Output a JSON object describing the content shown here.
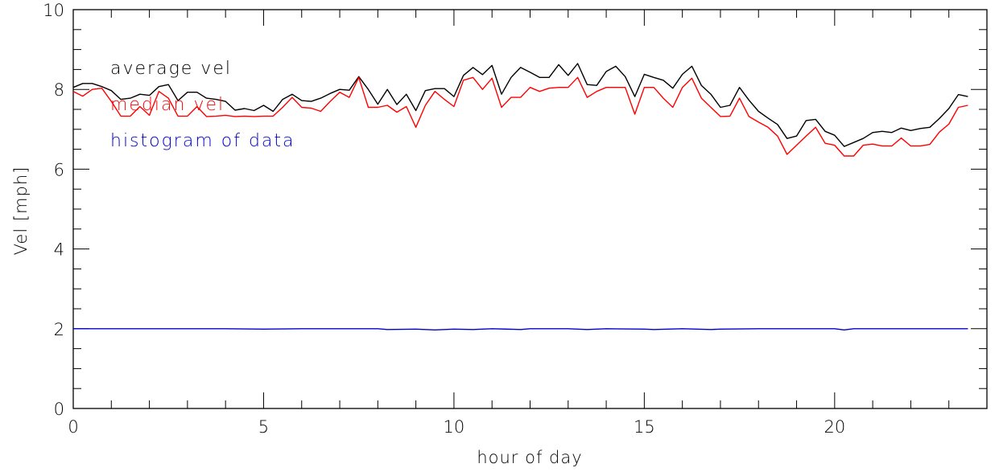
{
  "chart_data": {
    "type": "line",
    "xlabel": "hour of day",
    "ylabel": "Vel [mph]",
    "xlim": [
      0,
      24
    ],
    "ylim": [
      0,
      10
    ],
    "xticks": [
      0,
      5,
      10,
      15,
      20
    ],
    "yticks": [
      0,
      2,
      4,
      6,
      8,
      10
    ],
    "legend_placement": "top-left, inside plot",
    "series": [
      {
        "name": "average vel",
        "color": "#000000",
        "points": [
          [
            0,
            8.05
          ],
          [
            0.25,
            8.15
          ],
          [
            0.5,
            8.15
          ],
          [
            0.75,
            8.07
          ],
          [
            1,
            7.97
          ],
          [
            1.25,
            7.75
          ],
          [
            1.5,
            7.78
          ],
          [
            1.75,
            7.88
          ],
          [
            2,
            7.85
          ],
          [
            2.25,
            8.07
          ],
          [
            2.5,
            8.12
          ],
          [
            2.75,
            7.72
          ],
          [
            3,
            7.93
          ],
          [
            3.25,
            7.93
          ],
          [
            3.5,
            7.78
          ],
          [
            3.75,
            7.75
          ],
          [
            4,
            7.7
          ],
          [
            4.25,
            7.48
          ],
          [
            4.5,
            7.52
          ],
          [
            4.75,
            7.47
          ],
          [
            5,
            7.6
          ],
          [
            5.25,
            7.45
          ],
          [
            5.5,
            7.75
          ],
          [
            5.75,
            7.88
          ],
          [
            6,
            7.72
          ],
          [
            6.25,
            7.7
          ],
          [
            6.5,
            7.78
          ],
          [
            6.75,
            7.9
          ],
          [
            7,
            8.0
          ],
          [
            7.25,
            7.98
          ],
          [
            7.5,
            8.32
          ],
          [
            7.75,
            8.0
          ],
          [
            8,
            7.63
          ],
          [
            8.25,
            8.0
          ],
          [
            8.5,
            7.62
          ],
          [
            8.75,
            7.88
          ],
          [
            9,
            7.47
          ],
          [
            9.25,
            7.97
          ],
          [
            9.5,
            8.02
          ],
          [
            9.75,
            8.02
          ],
          [
            10,
            7.82
          ],
          [
            10.25,
            8.35
          ],
          [
            10.5,
            8.55
          ],
          [
            10.75,
            8.37
          ],
          [
            11,
            8.6
          ],
          [
            11.25,
            7.88
          ],
          [
            11.5,
            8.3
          ],
          [
            11.75,
            8.55
          ],
          [
            12,
            8.43
          ],
          [
            12.25,
            8.3
          ],
          [
            12.5,
            8.3
          ],
          [
            12.75,
            8.62
          ],
          [
            13,
            8.35
          ],
          [
            13.25,
            8.65
          ],
          [
            13.5,
            8.12
          ],
          [
            13.75,
            8.1
          ],
          [
            14,
            8.45
          ],
          [
            14.25,
            8.58
          ],
          [
            14.5,
            8.32
          ],
          [
            14.75,
            7.82
          ],
          [
            15,
            8.38
          ],
          [
            15.25,
            8.3
          ],
          [
            15.5,
            8.23
          ],
          [
            15.75,
            8.03
          ],
          [
            16,
            8.38
          ],
          [
            16.25,
            8.58
          ],
          [
            16.5,
            8.1
          ],
          [
            16.75,
            7.88
          ],
          [
            17,
            7.55
          ],
          [
            17.25,
            7.6
          ],
          [
            17.5,
            8.05
          ],
          [
            17.75,
            7.73
          ],
          [
            18,
            7.45
          ],
          [
            18.25,
            7.28
          ],
          [
            18.5,
            7.12
          ],
          [
            18.75,
            6.77
          ],
          [
            19,
            6.83
          ],
          [
            19.25,
            7.22
          ],
          [
            19.5,
            7.25
          ],
          [
            19.75,
            6.95
          ],
          [
            20,
            6.85
          ],
          [
            20.25,
            6.57
          ],
          [
            20.5,
            6.67
          ],
          [
            20.75,
            6.77
          ],
          [
            21,
            6.92
          ],
          [
            21.25,
            6.95
          ],
          [
            21.5,
            6.92
          ],
          [
            21.75,
            7.03
          ],
          [
            22,
            6.97
          ],
          [
            22.25,
            7.02
          ],
          [
            22.5,
            7.05
          ],
          [
            22.75,
            7.27
          ],
          [
            23,
            7.52
          ],
          [
            23.25,
            7.87
          ],
          [
            23.5,
            7.82
          ]
        ]
      },
      {
        "name": "median vel",
        "color": "#ff0000",
        "points": [
          [
            0,
            7.95
          ],
          [
            0.25,
            7.83
          ],
          [
            0.5,
            8.0
          ],
          [
            0.75,
            8.03
          ],
          [
            1,
            7.7
          ],
          [
            1.25,
            7.33
          ],
          [
            1.5,
            7.33
          ],
          [
            1.75,
            7.57
          ],
          [
            2,
            7.35
          ],
          [
            2.25,
            7.95
          ],
          [
            2.5,
            7.78
          ],
          [
            2.75,
            7.33
          ],
          [
            3,
            7.33
          ],
          [
            3.25,
            7.57
          ],
          [
            3.5,
            7.32
          ],
          [
            3.75,
            7.33
          ],
          [
            4,
            7.35
          ],
          [
            4.25,
            7.32
          ],
          [
            4.5,
            7.33
          ],
          [
            4.75,
            7.32
          ],
          [
            5,
            7.33
          ],
          [
            5.25,
            7.33
          ],
          [
            5.5,
            7.55
          ],
          [
            5.75,
            7.8
          ],
          [
            6,
            7.55
          ],
          [
            6.25,
            7.53
          ],
          [
            6.5,
            7.45
          ],
          [
            6.75,
            7.7
          ],
          [
            7,
            7.93
          ],
          [
            7.25,
            7.8
          ],
          [
            7.5,
            8.3
          ],
          [
            7.75,
            7.55
          ],
          [
            8,
            7.55
          ],
          [
            8.25,
            7.6
          ],
          [
            8.5,
            7.43
          ],
          [
            8.75,
            7.57
          ],
          [
            9,
            7.05
          ],
          [
            9.25,
            7.6
          ],
          [
            9.5,
            7.95
          ],
          [
            9.75,
            7.75
          ],
          [
            10,
            7.57
          ],
          [
            10.25,
            8.23
          ],
          [
            10.5,
            8.3
          ],
          [
            10.75,
            8.0
          ],
          [
            11,
            8.28
          ],
          [
            11.25,
            7.55
          ],
          [
            11.5,
            7.8
          ],
          [
            11.75,
            7.8
          ],
          [
            12,
            8.05
          ],
          [
            12.25,
            7.95
          ],
          [
            12.5,
            8.03
          ],
          [
            12.75,
            8.05
          ],
          [
            13,
            8.05
          ],
          [
            13.25,
            8.3
          ],
          [
            13.5,
            7.8
          ],
          [
            13.75,
            7.95
          ],
          [
            14,
            8.05
          ],
          [
            14.25,
            8.05
          ],
          [
            14.5,
            8.05
          ],
          [
            14.75,
            7.38
          ],
          [
            15,
            8.05
          ],
          [
            15.25,
            8.05
          ],
          [
            15.5,
            7.78
          ],
          [
            15.75,
            7.55
          ],
          [
            16,
            8.05
          ],
          [
            16.25,
            8.28
          ],
          [
            16.5,
            7.78
          ],
          [
            16.75,
            7.55
          ],
          [
            17,
            7.32
          ],
          [
            17.25,
            7.33
          ],
          [
            17.5,
            7.78
          ],
          [
            17.75,
            7.32
          ],
          [
            18,
            7.18
          ],
          [
            18.25,
            7.05
          ],
          [
            18.5,
            6.83
          ],
          [
            18.75,
            6.37
          ],
          [
            19,
            6.6
          ],
          [
            19.25,
            6.83
          ],
          [
            19.5,
            7.05
          ],
          [
            19.75,
            6.65
          ],
          [
            20,
            6.6
          ],
          [
            20.25,
            6.33
          ],
          [
            20.5,
            6.33
          ],
          [
            20.75,
            6.6
          ],
          [
            21,
            6.63
          ],
          [
            21.25,
            6.58
          ],
          [
            21.5,
            6.58
          ],
          [
            21.75,
            6.78
          ],
          [
            22,
            6.58
          ],
          [
            22.25,
            6.58
          ],
          [
            22.5,
            6.62
          ],
          [
            22.75,
            6.93
          ],
          [
            23,
            7.13
          ],
          [
            23.25,
            7.55
          ],
          [
            23.5,
            7.6
          ]
        ]
      },
      {
        "name": "histogram of data",
        "color": "#0000cc",
        "points": [
          [
            0,
            2.0
          ],
          [
            1,
            2.0
          ],
          [
            2,
            2.0
          ],
          [
            3,
            2.0
          ],
          [
            4,
            2.0
          ],
          [
            5,
            1.99
          ],
          [
            6,
            2.0
          ],
          [
            7,
            2.0
          ],
          [
            8,
            2.0
          ],
          [
            8.25,
            1.98
          ],
          [
            9,
            1.99
          ],
          [
            9.5,
            1.97
          ],
          [
            10,
            1.99
          ],
          [
            10.5,
            1.98
          ],
          [
            11,
            2.0
          ],
          [
            11.75,
            1.98
          ],
          [
            12,
            2.0
          ],
          [
            13,
            2.0
          ],
          [
            13.5,
            1.98
          ],
          [
            14,
            2.0
          ],
          [
            15,
            1.99
          ],
          [
            15.25,
            1.98
          ],
          [
            16,
            2.0
          ],
          [
            16.75,
            1.98
          ],
          [
            17,
            1.99
          ],
          [
            18,
            2.0
          ],
          [
            19,
            2.0
          ],
          [
            20,
            2.0
          ],
          [
            20.25,
            1.97
          ],
          [
            20.5,
            2.0
          ],
          [
            21,
            2.0
          ],
          [
            22,
            2.0
          ],
          [
            23,
            2.0
          ],
          [
            23.5,
            2.0
          ]
        ]
      }
    ]
  }
}
